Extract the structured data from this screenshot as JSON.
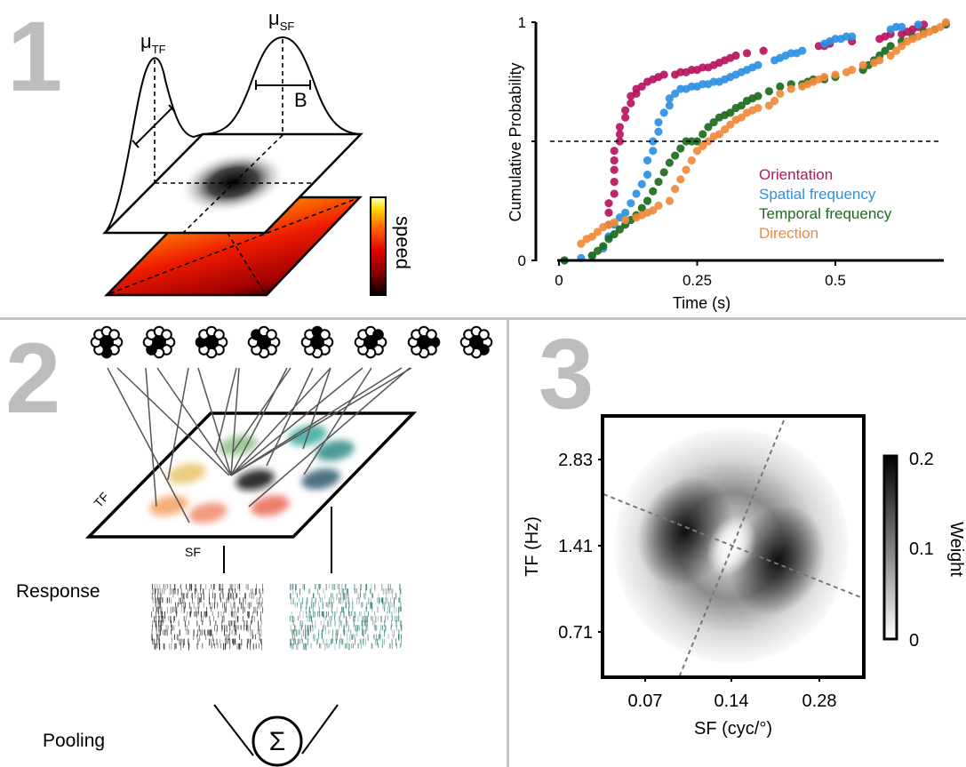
{
  "panels": {
    "p1": {
      "number": "1"
    },
    "p2": {
      "number": "2"
    },
    "p3": {
      "number": "3"
    }
  },
  "panel1_schematic": {
    "mu_tf": "μ",
    "mu_tf_sub": "TF",
    "mu_sf": "μ",
    "mu_sf_sub": "SF",
    "bandwidth_label": "B",
    "colorbar_label": "speed",
    "colormap": [
      "#000000",
      "#7a0000",
      "#e00000",
      "#ff6a00",
      "#ffd800",
      "#ffffc8"
    ]
  },
  "panel2_schematic": {
    "tf_label": "TF",
    "sf_label": "SF",
    "response_label": "Response",
    "pooling_label": "Pooling",
    "sum_symbol": "Σ",
    "rosette_filled_positions": [
      "bottom",
      "bottom-left",
      "left",
      "top-left",
      "top",
      "top-right",
      "right",
      "bottom-right"
    ],
    "blob_colors": [
      "#8fbf8a",
      "#3aa89c",
      "#2e8a86",
      "#e8c46a",
      "#111111",
      "#2f5b6e",
      "#f4a060",
      "#f08a6a",
      "#ea6a55"
    ],
    "raster_colors": [
      "#222222",
      "#2e7a70"
    ]
  },
  "chart_data": [
    {
      "type": "scatter",
      "title": "",
      "xlabel": "Time (s)",
      "ylabel": "Cumulative Probability",
      "xlim": [
        0,
        0.7
      ],
      "ylim": [
        0,
        1
      ],
      "xticks": [
        0,
        0.25,
        0.5
      ],
      "xtick_labels": [
        "0",
        "0.25",
        "0.5"
      ],
      "yticks": [
        0,
        1
      ],
      "ytick_labels": [
        "0",
        "1"
      ],
      "reference_line": {
        "y": 0.5,
        "style": "dashed"
      },
      "legend_position": "center-right",
      "series": [
        {
          "name": "Orientation",
          "color": "#b8145e",
          "x": [
            0.09,
            0.09,
            0.09,
            0.09,
            0.1,
            0.1,
            0.1,
            0.1,
            0.1,
            0.11,
            0.11,
            0.11,
            0.12,
            0.12,
            0.13,
            0.13,
            0.14,
            0.14,
            0.15,
            0.16,
            0.17,
            0.18,
            0.19,
            0.21,
            0.22,
            0.23,
            0.24,
            0.25,
            0.26,
            0.27,
            0.28,
            0.29,
            0.3,
            0.31,
            0.32,
            0.34,
            0.37,
            0.47,
            0.48,
            0.49,
            0.53,
            0.58,
            0.59,
            0.6,
            0.62,
            0.63,
            0.64,
            0.65,
            0.66
          ],
          "y": [
            0.1,
            0.15,
            0.2,
            0.24,
            0.28,
            0.33,
            0.38,
            0.42,
            0.46,
            0.5,
            0.53,
            0.56,
            0.6,
            0.63,
            0.66,
            0.69,
            0.7,
            0.72,
            0.73,
            0.75,
            0.76,
            0.77,
            0.78,
            0.78,
            0.79,
            0.79,
            0.8,
            0.8,
            0.81,
            0.81,
            0.82,
            0.83,
            0.84,
            0.85,
            0.86,
            0.87,
            0.88,
            0.9,
            0.9,
            0.91,
            0.92,
            0.93,
            0.94,
            0.95,
            0.95,
            0.96,
            0.97,
            0.98,
            0.99
          ]
        },
        {
          "name": "Spatial frequency",
          "color": "#2e90e2",
          "x": [
            0.01,
            0.04,
            0.06,
            0.08,
            0.09,
            0.1,
            0.11,
            0.12,
            0.13,
            0.14,
            0.15,
            0.16,
            0.16,
            0.17,
            0.17,
            0.18,
            0.18,
            0.19,
            0.2,
            0.2,
            0.21,
            0.22,
            0.23,
            0.24,
            0.25,
            0.26,
            0.27,
            0.28,
            0.29,
            0.3,
            0.31,
            0.32,
            0.33,
            0.34,
            0.35,
            0.36,
            0.39,
            0.4,
            0.41,
            0.42,
            0.43,
            0.44,
            0.48,
            0.49,
            0.5,
            0.51,
            0.52,
            0.53,
            0.6,
            0.61,
            0.62,
            0.65
          ],
          "y": [
            0.0,
            0.01,
            0.02,
            0.05,
            0.1,
            0.15,
            0.18,
            0.2,
            0.24,
            0.28,
            0.32,
            0.36,
            0.42,
            0.46,
            0.5,
            0.54,
            0.58,
            0.62,
            0.65,
            0.68,
            0.7,
            0.72,
            0.72,
            0.73,
            0.73,
            0.74,
            0.74,
            0.75,
            0.75,
            0.76,
            0.77,
            0.78,
            0.79,
            0.8,
            0.81,
            0.82,
            0.84,
            0.85,
            0.86,
            0.87,
            0.87,
            0.88,
            0.91,
            0.92,
            0.93,
            0.93,
            0.94,
            0.94,
            0.97,
            0.98,
            0.98,
            0.99
          ]
        },
        {
          "name": "Temporal frequency",
          "color": "#1d6b1d",
          "x": [
            0.01,
            0.06,
            0.07,
            0.08,
            0.09,
            0.1,
            0.11,
            0.12,
            0.13,
            0.14,
            0.15,
            0.16,
            0.17,
            0.18,
            0.19,
            0.2,
            0.21,
            0.22,
            0.23,
            0.24,
            0.25,
            0.26,
            0.27,
            0.28,
            0.29,
            0.3,
            0.31,
            0.32,
            0.33,
            0.34,
            0.35,
            0.36,
            0.38,
            0.4,
            0.42,
            0.44,
            0.45,
            0.46,
            0.48,
            0.5,
            0.55,
            0.56,
            0.57,
            0.58,
            0.59,
            0.6,
            0.62,
            0.64,
            0.66,
            0.68,
            0.7
          ],
          "y": [
            0.0,
            0.02,
            0.04,
            0.06,
            0.09,
            0.11,
            0.13,
            0.15,
            0.17,
            0.19,
            0.22,
            0.25,
            0.29,
            0.33,
            0.37,
            0.41,
            0.44,
            0.47,
            0.5,
            0.5,
            0.5,
            0.53,
            0.56,
            0.58,
            0.6,
            0.61,
            0.62,
            0.64,
            0.65,
            0.67,
            0.68,
            0.69,
            0.71,
            0.73,
            0.74,
            0.74,
            0.75,
            0.76,
            0.76,
            0.77,
            0.8,
            0.82,
            0.84,
            0.86,
            0.88,
            0.9,
            0.92,
            0.94,
            0.96,
            0.97,
            0.99
          ]
        },
        {
          "name": "Direction",
          "color": "#f08a3c",
          "x": [
            0.04,
            0.05,
            0.06,
            0.07,
            0.08,
            0.09,
            0.1,
            0.12,
            0.14,
            0.15,
            0.16,
            0.17,
            0.18,
            0.2,
            0.21,
            0.22,
            0.23,
            0.24,
            0.25,
            0.26,
            0.27,
            0.28,
            0.29,
            0.3,
            0.31,
            0.32,
            0.33,
            0.34,
            0.35,
            0.36,
            0.38,
            0.39,
            0.4,
            0.42,
            0.44,
            0.45,
            0.46,
            0.47,
            0.48,
            0.5,
            0.52,
            0.53,
            0.55,
            0.57,
            0.58,
            0.6,
            0.61,
            0.62,
            0.63,
            0.64,
            0.65,
            0.66,
            0.67,
            0.68,
            0.69,
            0.7
          ],
          "y": [
            0.07,
            0.09,
            0.1,
            0.12,
            0.14,
            0.15,
            0.16,
            0.17,
            0.18,
            0.19,
            0.2,
            0.21,
            0.23,
            0.25,
            0.3,
            0.34,
            0.38,
            0.42,
            0.46,
            0.48,
            0.5,
            0.52,
            0.53,
            0.55,
            0.57,
            0.59,
            0.6,
            0.62,
            0.63,
            0.64,
            0.65,
            0.67,
            0.7,
            0.72,
            0.73,
            0.74,
            0.75,
            0.76,
            0.77,
            0.78,
            0.79,
            0.8,
            0.82,
            0.83,
            0.84,
            0.86,
            0.88,
            0.9,
            0.92,
            0.93,
            0.94,
            0.95,
            0.96,
            0.97,
            0.98,
            1.0
          ]
        }
      ]
    },
    {
      "type": "heatmap",
      "title": "",
      "xlabel": "SF (cyc/°)",
      "ylabel": "TF (Hz)",
      "xticks": [
        0.07,
        0.14,
        0.28
      ],
      "xtick_labels": [
        "0.07",
        "0.14",
        "0.28"
      ],
      "yticks": [
        0.71,
        1.41,
        2.83
      ],
      "ytick_labels": [
        "0.71",
        "1.41",
        "2.83"
      ],
      "xscale": "log2",
      "yscale": "log2",
      "colorbar": {
        "label": "Weight",
        "range": [
          0,
          0.2
        ],
        "ticks": [
          0,
          0.1,
          0.2
        ],
        "tick_labels": [
          "0",
          "0.1",
          "0.2"
        ],
        "colormap": "gray-reversed"
      },
      "description": "Ring-shaped weight map centered near SF 0.14, TF 1.41 with two dark lobes along the speed-constant axis; two dashed lines cross at center",
      "lobes": [
        {
          "sf": 0.1,
          "tf": 1.6,
          "weight": 0.2
        },
        {
          "sf": 0.2,
          "tf": 1.2,
          "weight": 0.2
        }
      ],
      "center": {
        "sf": 0.14,
        "tf": 1.41,
        "weight": 0.0
      },
      "dashed_lines": [
        "speed axis",
        "orthogonal axis"
      ]
    }
  ]
}
